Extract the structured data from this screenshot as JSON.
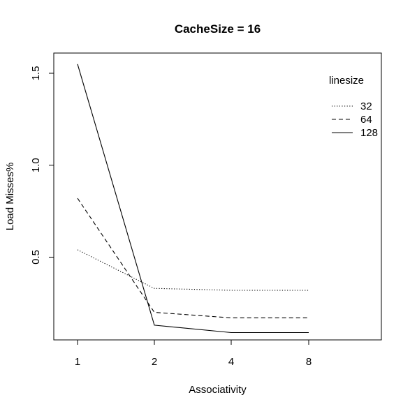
{
  "chart_data": {
    "type": "line",
    "title": "CacheSize = 16",
    "xlabel": "Associativity",
    "ylabel": "Load Misses%",
    "categories": [
      "1",
      "2",
      "4",
      "8"
    ],
    "series": [
      {
        "name": "32",
        "values": [
          0.54,
          0.33,
          0.32,
          0.32
        ],
        "linestyle": "dotted"
      },
      {
        "name": "64",
        "values": [
          0.82,
          0.2,
          0.17,
          0.17
        ],
        "linestyle": "dashed"
      },
      {
        "name": "128",
        "values": [
          1.55,
          0.13,
          0.09,
          0.09
        ],
        "linestyle": "solid"
      }
    ],
    "yticks": [
      "0.5",
      "1.0",
      "1.5"
    ],
    "yrange": [
      0.05,
      1.61
    ],
    "legend": {
      "title": "linesize",
      "placement": "top-right"
    },
    "grid": false,
    "line_color": "#000000"
  }
}
